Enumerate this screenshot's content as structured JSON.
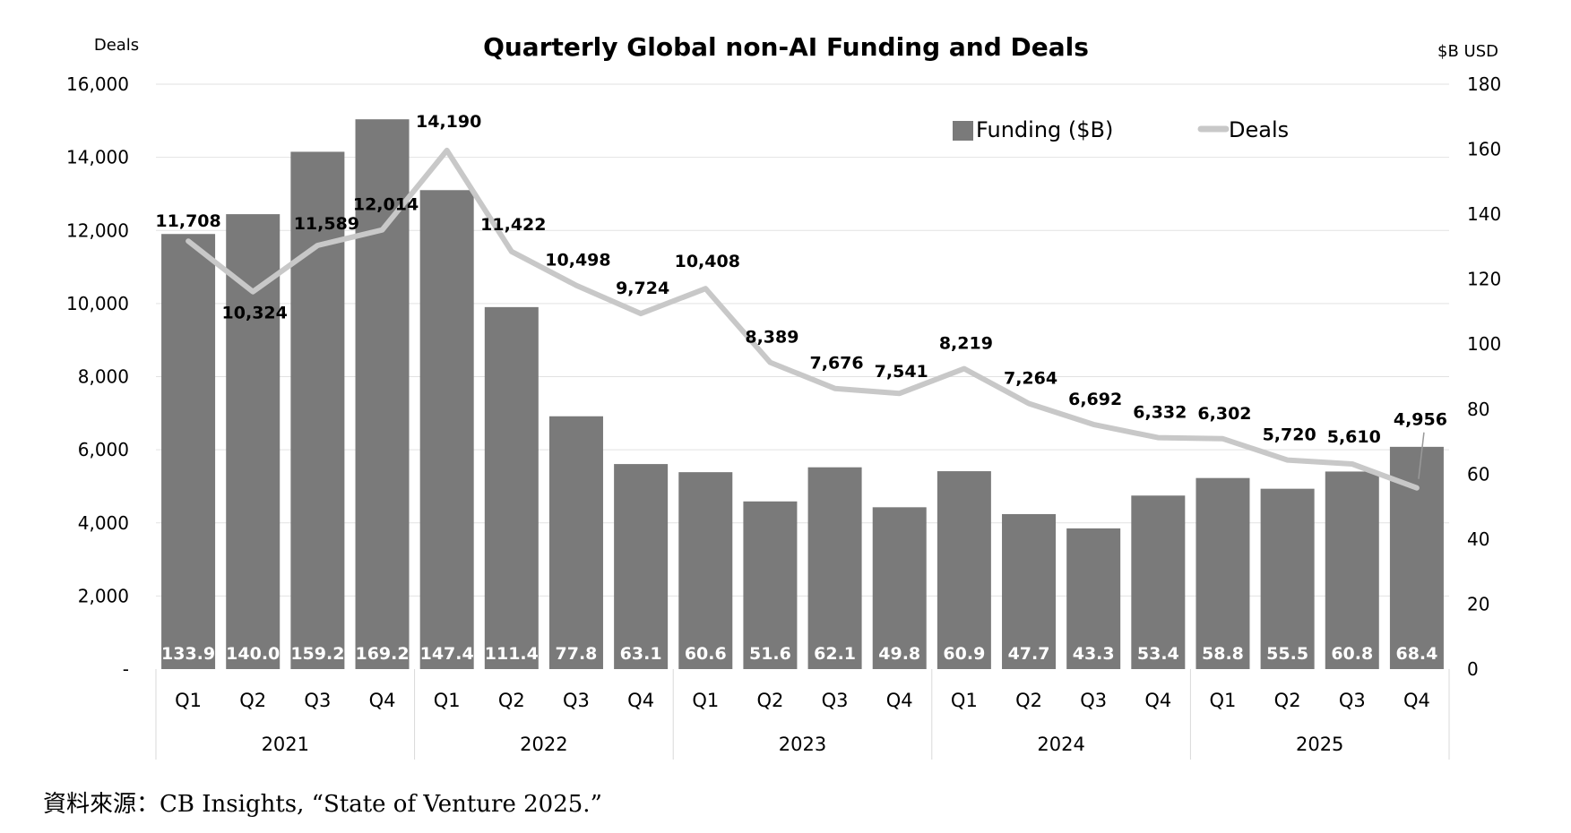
{
  "chart_data": {
    "type": "bar",
    "title": "Quarterly Global non-AI Funding and Deals",
    "left_axis_label": "Deals",
    "right_axis_label": "$B USD",
    "left_ticks": [
      "16,000",
      "14,000",
      "12,000",
      "10,000",
      "8,000",
      "6,000",
      "4,000",
      "2,000",
      "-"
    ],
    "right_ticks": [
      "180",
      "160",
      "140",
      "120",
      "100",
      "80",
      "60",
      "40",
      "20",
      "0"
    ],
    "left_ylim": [
      0,
      16000
    ],
    "right_ylim": [
      0,
      180
    ],
    "categories": [
      "Q1",
      "Q2",
      "Q3",
      "Q4",
      "Q1",
      "Q2",
      "Q3",
      "Q4",
      "Q1",
      "Q2",
      "Q3",
      "Q4",
      "Q1",
      "Q2",
      "Q3",
      "Q4",
      "Q1",
      "Q2",
      "Q3",
      "Q4"
    ],
    "years": [
      "2021",
      "2022",
      "2023",
      "2024",
      "2025"
    ],
    "series": [
      {
        "name": "Funding ($B)",
        "kind": "bar",
        "axis": "right",
        "color": "#7a7a7a",
        "values": [
          133.9,
          140.0,
          159.2,
          169.2,
          147.4,
          111.4,
          77.8,
          63.1,
          60.6,
          51.6,
          62.1,
          49.8,
          60.9,
          47.7,
          43.3,
          53.4,
          58.8,
          55.5,
          60.8,
          68.4
        ],
        "labels": [
          "133.9",
          "140.0",
          "159.2",
          "169.2",
          "147.4",
          "111.4",
          "77.8",
          "63.1",
          "60.6",
          "51.6",
          "62.1",
          "49.8",
          "60.9",
          "47.7",
          "43.3",
          "53.4",
          "58.8",
          "55.5",
          "60.8",
          "68.4"
        ]
      },
      {
        "name": "Deals",
        "kind": "line",
        "axis": "left",
        "color": "#c8c8c8",
        "values": [
          11708,
          10324,
          11589,
          12014,
          14190,
          11422,
          10498,
          9724,
          10408,
          8389,
          7676,
          7541,
          8219,
          7264,
          6692,
          6332,
          6302,
          5720,
          5610,
          4956
        ],
        "labels": [
          "11,708",
          "10,324",
          "11,589",
          "12,014",
          "14,190",
          "11,422",
          "10,498",
          "9,724",
          "10,408",
          "8,389",
          "7,676",
          "7,541",
          "8,219",
          "7,264",
          "6,692",
          "6,332",
          "6,302",
          "5,720",
          "5,610",
          "4,956"
        ]
      }
    ],
    "legend": [
      "Funding ($B)",
      "Deals"
    ],
    "legend_position": "top-right",
    "grid": true
  },
  "source_note": "資料來源：CB Insights, “State of Venture 2025.”"
}
